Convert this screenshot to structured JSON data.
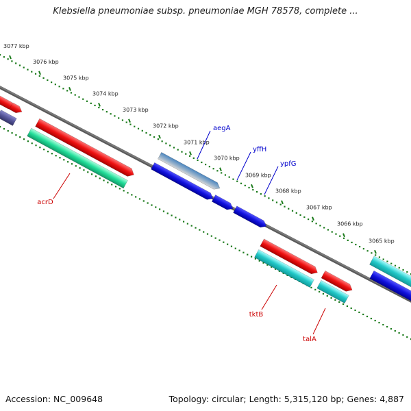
{
  "title": "Klebsiella pneumoniae subsp. pneumoniae MGH 78578, complete ...",
  "footer": {
    "accession": "Accession: NC_009648",
    "summary": "Topology: circular; Length: 5,315,120 bp; Genes: 4,887"
  },
  "ticks": [
    "3077 kbp",
    "3076 kbp",
    "3075 kbp",
    "3074 kbp",
    "3073 kbp",
    "3072 kbp",
    "3071 kbp",
    "3070 kbp",
    "3069 kbp",
    "3068 kbp",
    "3067 kbp",
    "3066 kbp",
    "3065 kbp"
  ],
  "genes": {
    "labeled": [
      {
        "name": "aegA",
        "strand": "forward",
        "color": "#0000cc"
      },
      {
        "name": "yffH",
        "strand": "forward",
        "color": "#0000cc"
      },
      {
        "name": "ypfG",
        "strand": "forward",
        "color": "#0000cc"
      },
      {
        "name": "acrD",
        "strand": "reverse",
        "color": "#cc0000"
      },
      {
        "name": "tktB",
        "strand": "reverse",
        "color": "#cc0000"
      },
      {
        "name": "talA",
        "strand": "reverse",
        "color": "#cc0000"
      }
    ]
  },
  "colors": {
    "backbone": "#7a7a7a",
    "gc_dots": "#1a7a1a",
    "feature_red": "#ee1111",
    "feature_blue": "#1111dd",
    "feature_cyan": "#22c8c8",
    "feature_green": "#22dd99",
    "feature_steel": "#4a86c0",
    "feature_navy": "#555599",
    "label_blue": "#0000cc",
    "label_red": "#cc0000"
  }
}
